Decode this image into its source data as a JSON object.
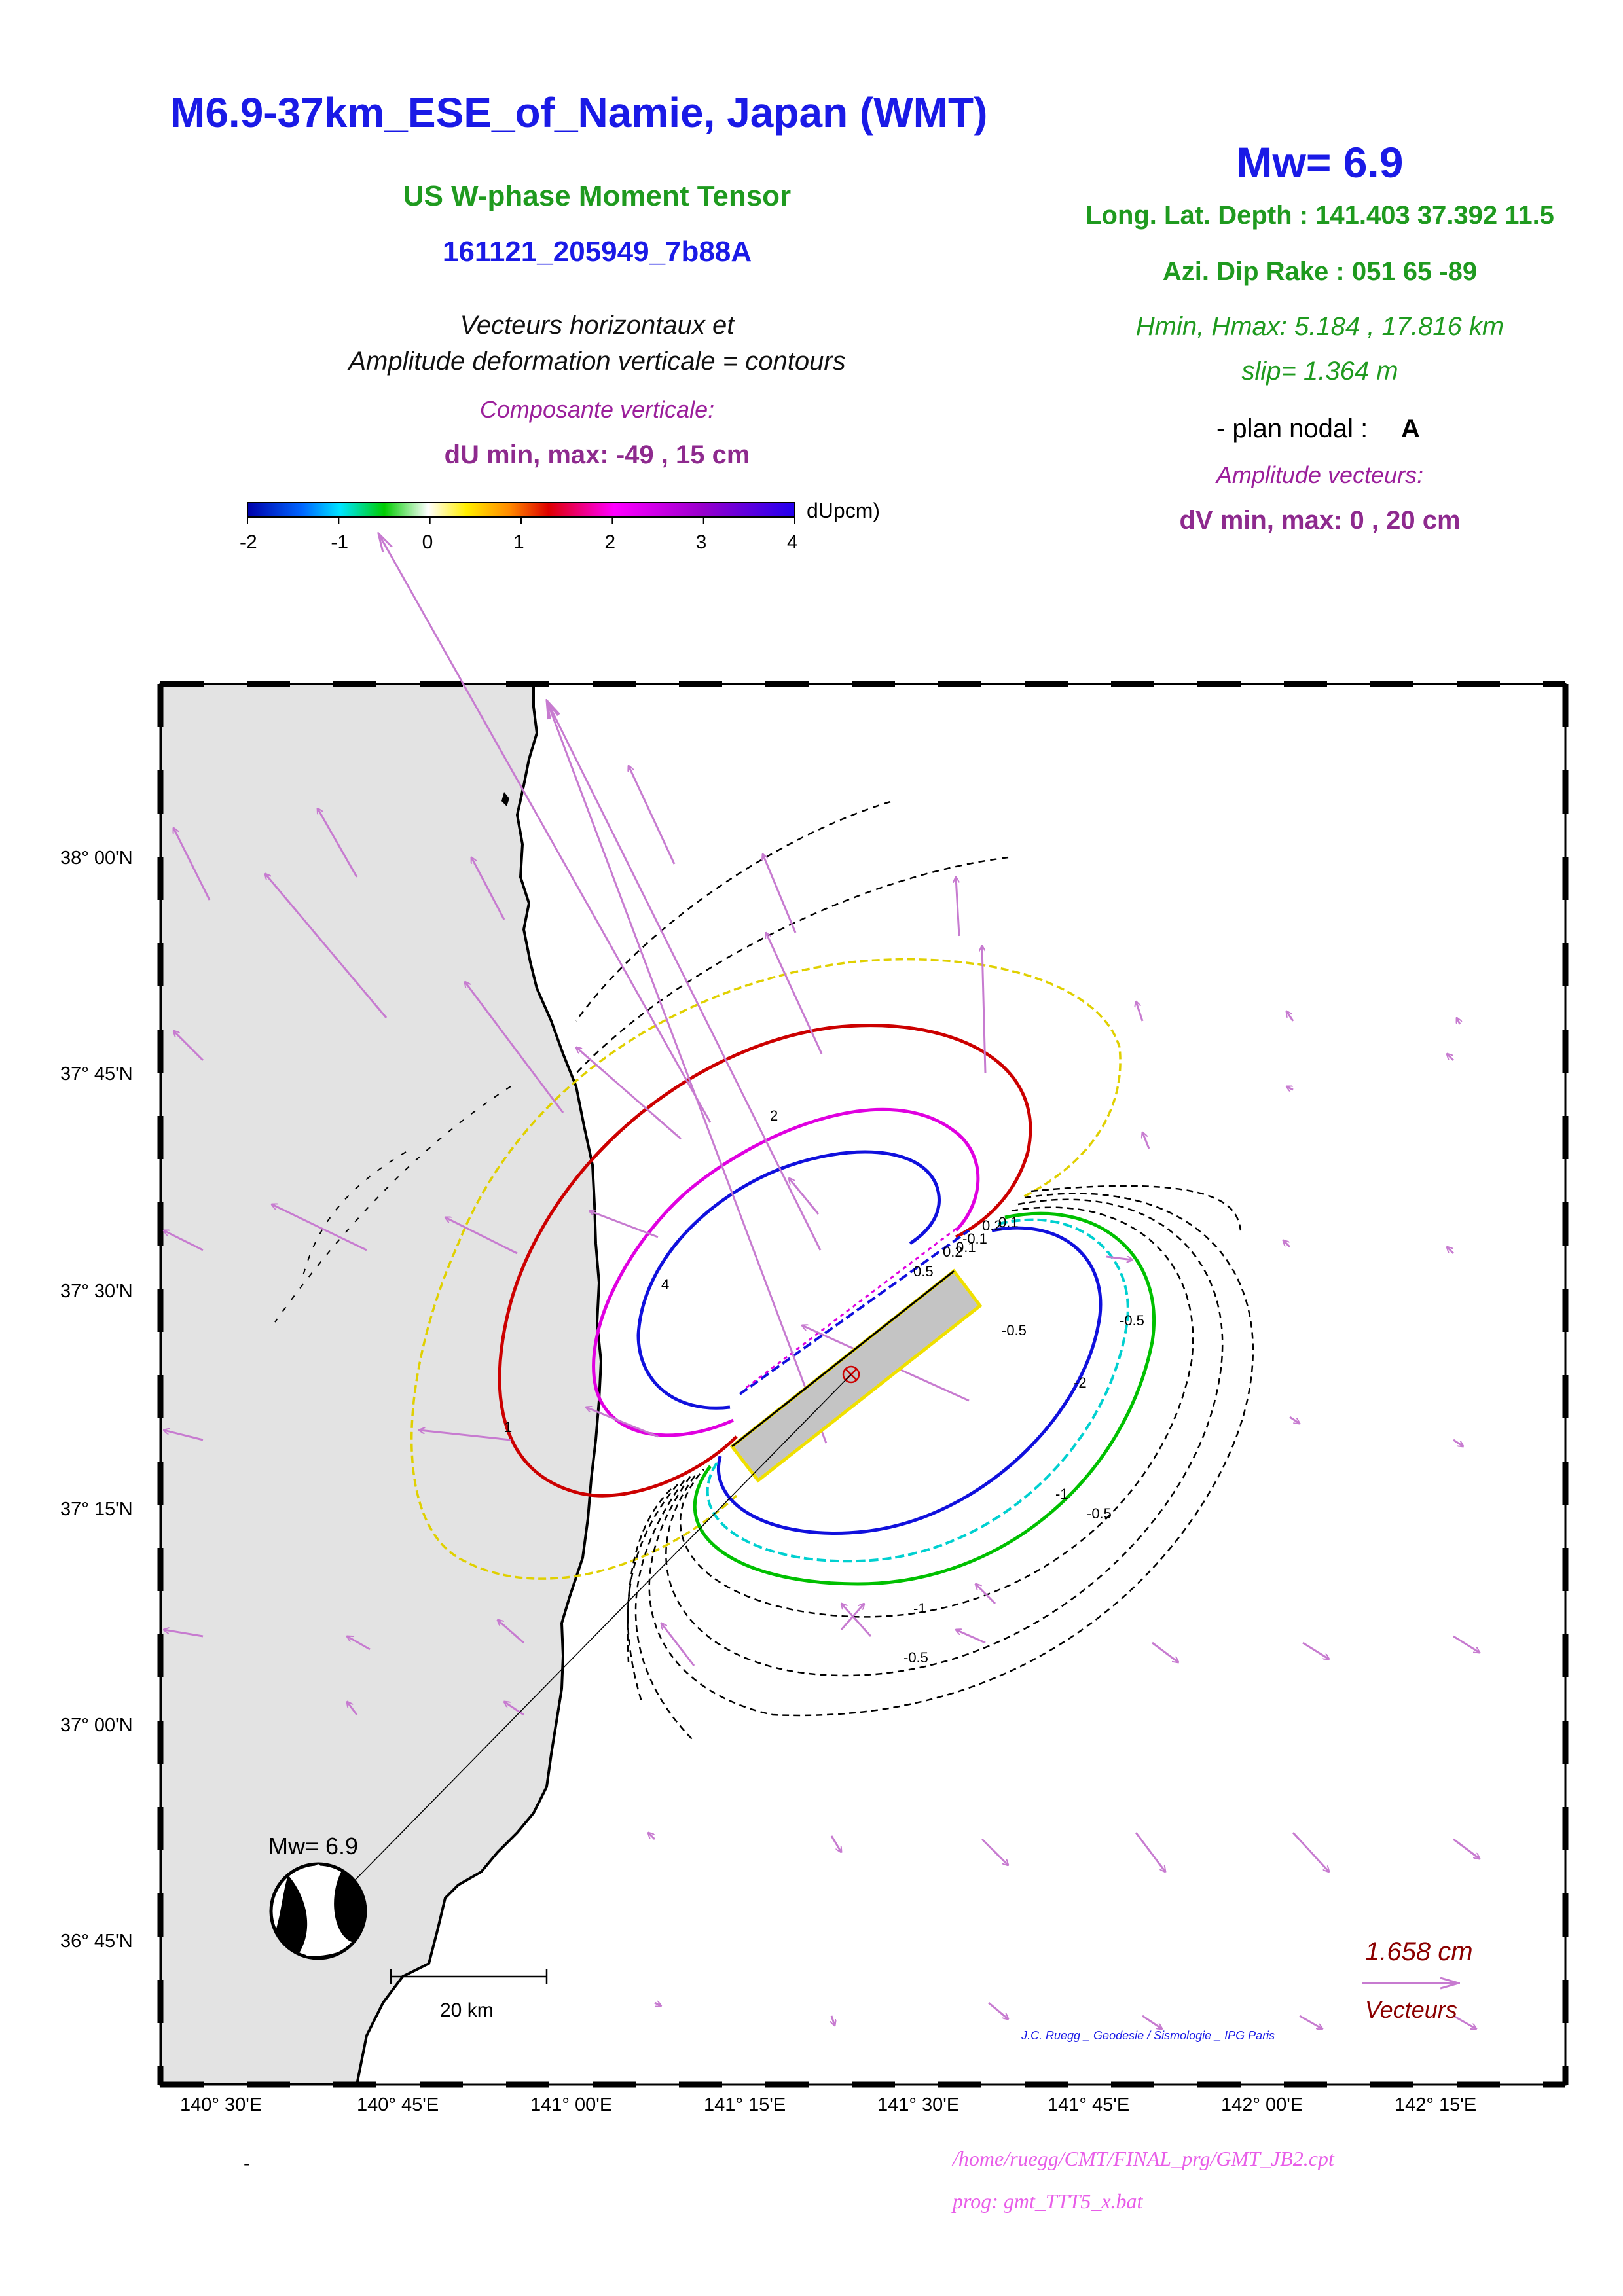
{
  "header": {
    "title": "M6.9-37km_ESE_of_Namie, Japan (WMT)",
    "subtitle": "US W-phase Moment Tensor",
    "event_id": "161121_205949_7b88A",
    "caption_line1": "Vecteurs horizontaux et",
    "caption_line2": "Amplitude deformation verticale = contours",
    "vertical_component_label": "Composante verticale:",
    "du_minmax": "dU min, max:  -49 , 15 cm"
  },
  "info": {
    "mw": "Mw= 6.9",
    "long_lat_depth": "Long. Lat. Depth : 141.403 37.392 11.5",
    "azi_dip_rake": "Azi.  Dip   Rake :  051 65 -89",
    "hmin_hmax": "Hmin, Hmax:  5.184 , 17.816 km",
    "slip": "slip= 1.364 m",
    "plan_nodal_label": "- plan nodal :",
    "plan_nodal_value": "A",
    "amplitude_label": "Amplitude vecteurs:",
    "dv_minmax": "dV min, max:  0 , 20 cm"
  },
  "colorbar": {
    "unit_label": "dUpcm)",
    "ticks": [
      "-2",
      "-1",
      "0",
      "1",
      "2",
      "3",
      "4"
    ]
  },
  "map": {
    "lat_labels": [
      "38° 00'N",
      "37° 45'N",
      "37° 30'N",
      "37° 15'N",
      "37° 00'N",
      "36° 45'N"
    ],
    "lon_labels": [
      "140° 30'E",
      "140° 45'E",
      "141° 00'E",
      "141° 15'E",
      "141° 30'E",
      "141° 45'E",
      "142° 00'E",
      "142° 15'E"
    ],
    "contour_labels": [
      "4",
      "2",
      "1",
      "-2",
      "-1",
      "-0.5",
      "-0.5",
      "-1",
      "-0.5",
      "-0.5",
      "0.5",
      "0.2",
      "0.1",
      "-0.1",
      "0.2",
      "0.1"
    ],
    "beachball_label": "Mw= 6.9",
    "scale_bar_label": "20 km",
    "vector_scale_value": "1.658  cm",
    "vector_scale_label": "Vecteurs",
    "credit": "J.C. Ruegg _ Geodesie / Sismologie _ IPG Paris",
    "colors": {
      "land": "#e3e3e3",
      "vector": "#c77bd0",
      "fault_fill": "#c4c4c4",
      "fault_edge": "#f0e000"
    }
  },
  "footer": {
    "dash": "-",
    "cpt_path": "/home/ruegg/CMT/FINAL_prg/GMT_JB2.cpt",
    "prog": "prog: gmt_TTT5_x.bat"
  }
}
